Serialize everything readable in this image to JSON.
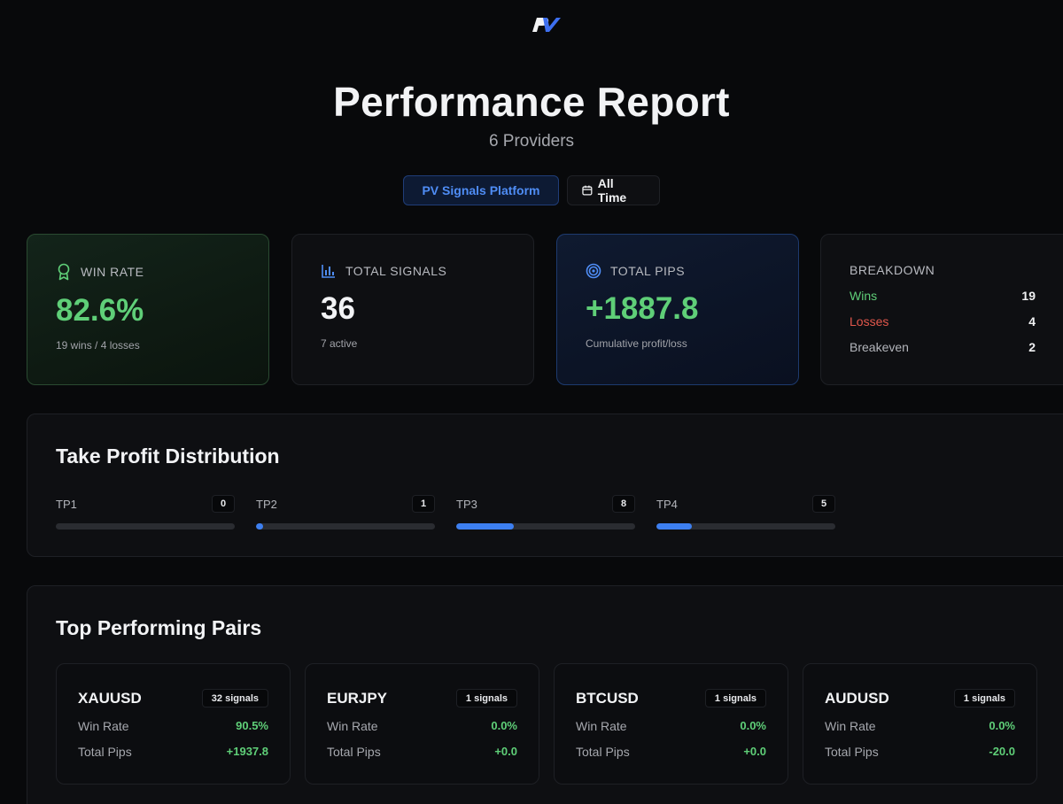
{
  "header": {
    "logo_text": "PV",
    "title": "Performance Report",
    "subtitle": "6 Providers"
  },
  "filters": {
    "platform": "PV Signals Platform",
    "time_range": "All Time"
  },
  "stats": {
    "win_rate": {
      "label": "WIN RATE",
      "value": "82.6%",
      "sub": "19 wins / 4 losses"
    },
    "total_signals": {
      "label": "TOTAL SIGNALS",
      "value": "36",
      "sub": "7 active"
    },
    "total_pips": {
      "label": "TOTAL PIPS",
      "value": "+1887.8",
      "sub": "Cumulative profit/loss"
    },
    "breakdown": {
      "label": "BREAKDOWN",
      "rows": [
        {
          "label": "Wins",
          "value": "19"
        },
        {
          "label": "Losses",
          "value": "4"
        },
        {
          "label": "Breakeven",
          "value": "2"
        }
      ]
    }
  },
  "tp_distribution": {
    "title": "Take Profit Distribution",
    "items": [
      {
        "label": "TP1",
        "count": "0",
        "fraction": 0
      },
      {
        "label": "TP2",
        "count": "1",
        "fraction": 0.04
      },
      {
        "label": "TP3",
        "count": "8",
        "fraction": 0.32
      },
      {
        "label": "TP4",
        "count": "5",
        "fraction": 0.2
      }
    ]
  },
  "top_pairs": {
    "title": "Top Performing Pairs",
    "win_rate_label": "Win Rate",
    "total_pips_label": "Total Pips",
    "items": [
      {
        "name": "XAUUSD",
        "signals": "32 signals",
        "win_rate": "90.5%",
        "total_pips": "+1937.8"
      },
      {
        "name": "EURJPY",
        "signals": "1 signals",
        "win_rate": "0.0%",
        "total_pips": "+0.0"
      },
      {
        "name": "BTCUSD",
        "signals": "1 signals",
        "win_rate": "0.0%",
        "total_pips": "+0.0"
      },
      {
        "name": "AUDUSD",
        "signals": "1 signals",
        "win_rate": "0.0%",
        "total_pips": "-20.0"
      }
    ]
  },
  "colors": {
    "accent_blue": "#3d7ff0",
    "positive_green": "#5fcf78",
    "negative_red": "#e2574c"
  },
  "icons": {
    "logo": "pv-logo-icon",
    "win_rate": "award-icon",
    "total_signals": "bar-chart-icon",
    "total_pips": "target-icon",
    "time_range": "calendar-icon"
  }
}
